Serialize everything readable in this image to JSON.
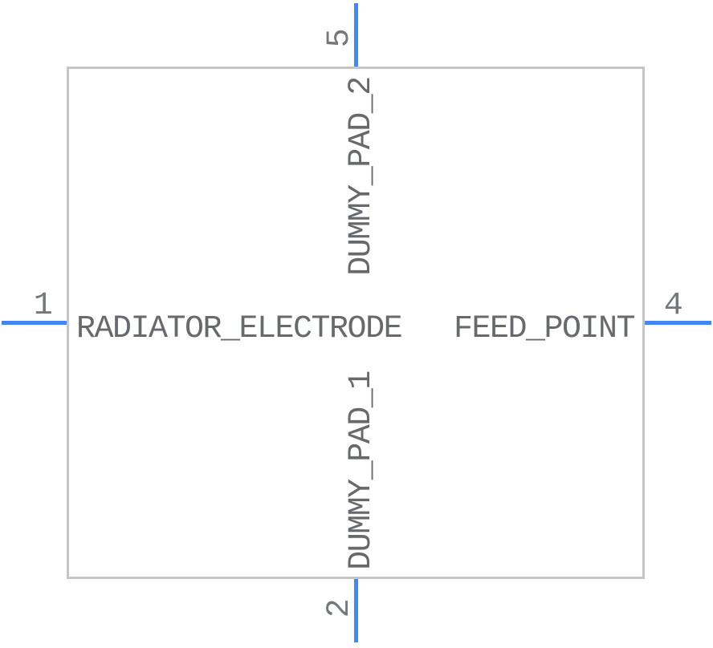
{
  "view": {
    "type": "schematic-symbol-preview"
  },
  "colors": {
    "background": "#ffffff",
    "pin": "#4287f5",
    "outline": "#c5c5c5",
    "label": "#67696d",
    "number": "#74777b"
  },
  "symbol": {
    "pins": [
      {
        "number": "1",
        "name": "RADIATOR_ELECTRODE",
        "side": "left"
      },
      {
        "number": "4",
        "name": "FEED_POINT",
        "side": "right"
      },
      {
        "number": "5",
        "name": "DUMMY_PAD_2",
        "side": "top"
      },
      {
        "number": "2",
        "name": "DUMMY_PAD_1",
        "side": "bottom"
      }
    ]
  }
}
